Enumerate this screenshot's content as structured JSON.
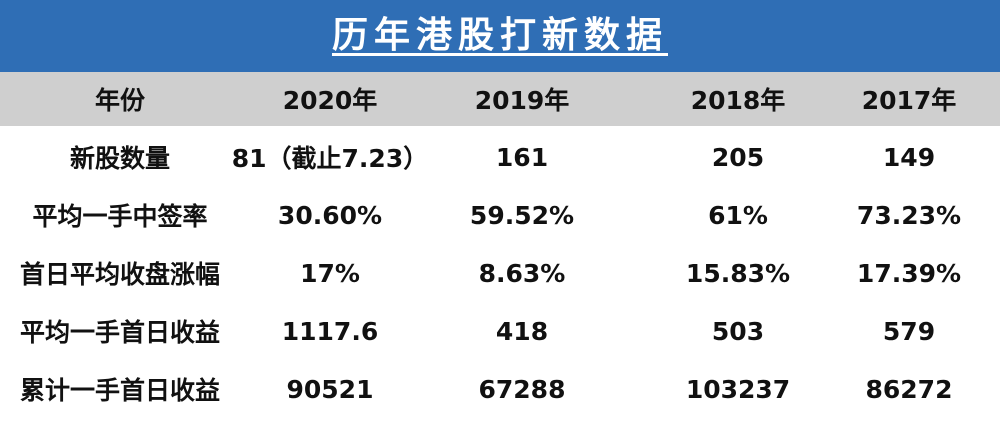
{
  "title": "历年港股打新数据",
  "header": [
    "年份",
    "2020年",
    "2019年",
    "2018年",
    "2017年"
  ],
  "rows": [
    [
      "新股数量",
      "81（截止7.23）",
      "161",
      "205",
      "149"
    ],
    [
      "平均一手中签率",
      "30.60%",
      "59.52%",
      "61%",
      "73.23%"
    ],
    [
      "首日平均收盘涨幅",
      "17%",
      "8.63%",
      "15.83%",
      "17.39%"
    ],
    [
      "平均一手首日收益",
      "1117.6",
      "418",
      "503",
      "579"
    ],
    [
      "累计一手首日收益",
      "90521",
      "67288",
      "103237",
      "86272"
    ]
  ],
  "colors": {
    "banner": "#2f6eb5",
    "header_bg": "#cfcfcf"
  }
}
